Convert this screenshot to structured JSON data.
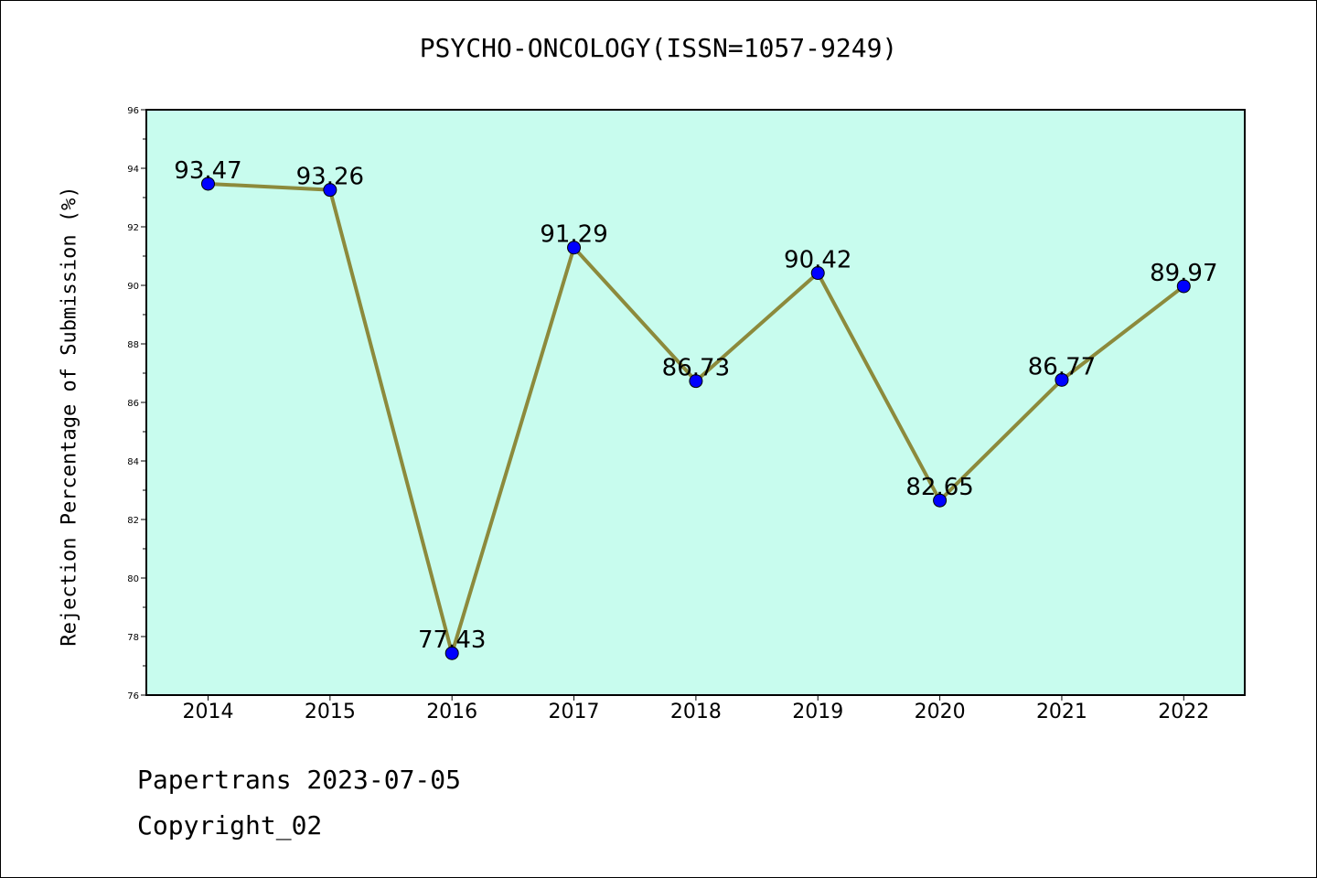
{
  "chart_data": {
    "type": "line",
    "title": "PSYCHO-ONCOLOGY(ISSN=1057-9249)",
    "xlabel": "",
    "ylabel": "Rejection Percentage of Submission (%)",
    "categories": [
      "2014",
      "2015",
      "2016",
      "2017",
      "2018",
      "2019",
      "2020",
      "2021",
      "2022"
    ],
    "values": [
      93.47,
      93.26,
      77.43,
      91.29,
      86.73,
      90.42,
      82.65,
      86.77,
      89.97
    ],
    "value_labels": [
      "93.47",
      "93.26",
      "77.43",
      "91.29",
      "86.73",
      "90.42",
      "82.65",
      "86.77",
      "89.97"
    ],
    "ylim": [
      76,
      96
    ],
    "yticks": [
      76,
      78,
      80,
      82,
      84,
      86,
      88,
      90,
      92,
      94,
      96
    ],
    "grid": false,
    "colors": {
      "plot_background": "#c8fcee",
      "line": "#8c8a3c",
      "marker": "#0000ff"
    }
  },
  "footer": {
    "line1": "Papertrans 2023-07-05",
    "line2": "Copyright_02"
  }
}
